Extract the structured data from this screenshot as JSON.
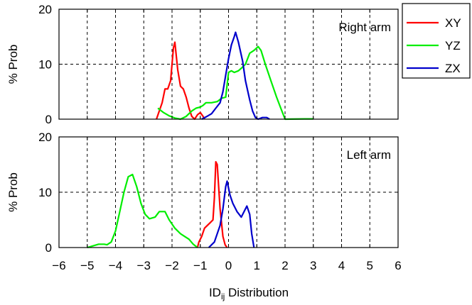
{
  "chart_data": {
    "type": "line",
    "xlabel": {
      "main": "ID",
      "sub": "ij",
      "rest": " Distribution"
    },
    "x_ticks": [
      -6,
      -5,
      -4,
      -3,
      -2,
      -1,
      0,
      1,
      2,
      3,
      4,
      5,
      6
    ],
    "x_tick_labels": [
      "−6",
      "−5",
      "−4",
      "−3",
      "−2",
      "−1",
      "0",
      "1",
      "2",
      "3",
      "4",
      "5",
      "6"
    ],
    "xlim": [
      -6,
      6
    ],
    "grid": true,
    "legend": {
      "placement": "outside-top-right",
      "entries": [
        {
          "name": "XY",
          "color": "#ff0000"
        },
        {
          "name": "YZ",
          "color": "#00ee00"
        },
        {
          "name": "ZX",
          "color": "#0000cc"
        }
      ]
    },
    "panels": [
      {
        "label": "Right arm",
        "ylabel": "% Prob",
        "ylim": [
          0,
          20
        ],
        "y_ticks": [
          0,
          10,
          20
        ],
        "series": [
          {
            "name": "XY",
            "color": "#ff0000",
            "points": [
              [
                -2.55,
                0
              ],
              [
                -2.45,
                1.5
              ],
              [
                -2.35,
                3
              ],
              [
                -2.25,
                5.5
              ],
              [
                -2.15,
                5.5
              ],
              [
                -2.05,
                7
              ],
              [
                -1.95,
                13
              ],
              [
                -1.9,
                14
              ],
              [
                -1.8,
                9
              ],
              [
                -1.7,
                6
              ],
              [
                -1.6,
                5.5
              ],
              [
                -1.5,
                4
              ],
              [
                -1.4,
                2
              ],
              [
                -1.3,
                0.5
              ],
              [
                -1.2,
                0
              ],
              [
                -1.1,
                0.8
              ],
              [
                -1.0,
                1.2
              ],
              [
                -0.9,
                0.5
              ],
              [
                -0.85,
                0
              ]
            ]
          },
          {
            "name": "YZ",
            "color": "#00ee00",
            "points": [
              [
                -2.5,
                2
              ],
              [
                -2.3,
                1.2
              ],
              [
                -2.1,
                0.6
              ],
              [
                -1.9,
                0.2
              ],
              [
                -1.7,
                0
              ],
              [
                -1.5,
                0.5
              ],
              [
                -1.3,
                1.5
              ],
              [
                -1.15,
                2
              ],
              [
                -1.0,
                2.2
              ],
              [
                -0.9,
                2.5
              ],
              [
                -0.8,
                3
              ],
              [
                -0.6,
                3
              ],
              [
                -0.4,
                3.2
              ],
              [
                -0.25,
                3.8
              ],
              [
                -0.1,
                4
              ],
              [
                0.0,
                8.5
              ],
              [
                0.1,
                8.8
              ],
              [
                0.2,
                8.5
              ],
              [
                0.35,
                8.8
              ],
              [
                0.5,
                9.5
              ],
              [
                0.6,
                10
              ],
              [
                0.75,
                12
              ],
              [
                0.9,
                12.5
              ],
              [
                1.05,
                13.2
              ],
              [
                1.15,
                12.5
              ],
              [
                1.3,
                10
              ],
              [
                1.5,
                7
              ],
              [
                1.7,
                4
              ],
              [
                1.85,
                2
              ],
              [
                2.0,
                0
              ],
              [
                2.7,
                0.05
              ],
              [
                3.0,
                0.05
              ]
            ]
          },
          {
            "name": "ZX",
            "color": "#0000cc",
            "points": [
              [
                -0.95,
                0
              ],
              [
                -0.8,
                0.4
              ],
              [
                -0.6,
                1
              ],
              [
                -0.45,
                2
              ],
              [
                -0.3,
                3
              ],
              [
                -0.2,
                5
              ],
              [
                -0.1,
                8
              ],
              [
                0.0,
                11
              ],
              [
                0.1,
                13.5
              ],
              [
                0.2,
                15
              ],
              [
                0.25,
                15.8
              ],
              [
                0.35,
                14
              ],
              [
                0.5,
                10.5
              ],
              [
                0.6,
                7
              ],
              [
                0.75,
                3.5
              ],
              [
                0.85,
                1.5
              ],
              [
                0.95,
                0.3
              ],
              [
                1.05,
                0
              ],
              [
                1.2,
                0.3
              ],
              [
                1.35,
                0.3
              ],
              [
                1.45,
                0
              ]
            ]
          }
        ]
      },
      {
        "label": "Left arm",
        "ylabel": "% Prob",
        "ylim": [
          0,
          20
        ],
        "y_ticks": [
          0,
          10,
          20
        ],
        "series": [
          {
            "name": "XY",
            "color": "#ff0000",
            "points": [
              [
                -1.1,
                0
              ],
              [
                -1.05,
                1
              ],
              [
                -0.95,
                2
              ],
              [
                -0.85,
                3.5
              ],
              [
                -0.75,
                4
              ],
              [
                -0.65,
                4.5
              ],
              [
                -0.55,
                5
              ],
              [
                -0.5,
                9
              ],
              [
                -0.45,
                15.5
              ],
              [
                -0.4,
                15
              ],
              [
                -0.35,
                11
              ],
              [
                -0.3,
                7
              ],
              [
                -0.2,
                2
              ],
              [
                -0.12,
                0.5
              ],
              [
                -0.05,
                0
              ]
            ]
          },
          {
            "name": "YZ",
            "color": "#00ee00",
            "points": [
              [
                -5.0,
                0
              ],
              [
                -4.8,
                0.3
              ],
              [
                -4.6,
                0.6
              ],
              [
                -4.4,
                0.6
              ],
              [
                -4.3,
                0.5
              ],
              [
                -4.15,
                1
              ],
              [
                -4.0,
                3
              ],
              [
                -3.85,
                6.5
              ],
              [
                -3.7,
                10
              ],
              [
                -3.55,
                12.8
              ],
              [
                -3.4,
                13.2
              ],
              [
                -3.25,
                11
              ],
              [
                -3.1,
                8
              ],
              [
                -2.95,
                6
              ],
              [
                -2.8,
                5.2
              ],
              [
                -2.6,
                5.5
              ],
              [
                -2.45,
                6.5
              ],
              [
                -2.25,
                6.5
              ],
              [
                -2.1,
                5
              ],
              [
                -1.9,
                3.5
              ],
              [
                -1.7,
                2.5
              ],
              [
                -1.55,
                2
              ],
              [
                -1.4,
                1.5
              ],
              [
                -1.25,
                0.6
              ],
              [
                -1.1,
                0
              ]
            ]
          },
          {
            "name": "ZX",
            "color": "#0000cc",
            "points": [
              [
                -0.7,
                0
              ],
              [
                -0.5,
                1
              ],
              [
                -0.3,
                4
              ],
              [
                -0.2,
                7
              ],
              [
                -0.1,
                11
              ],
              [
                -0.05,
                12
              ],
              [
                0.05,
                9.5
              ],
              [
                0.15,
                8
              ],
              [
                0.3,
                6.5
              ],
              [
                0.45,
                5.5
              ],
              [
                0.55,
                6.5
              ],
              [
                0.65,
                7.5
              ],
              [
                0.75,
                6
              ],
              [
                0.82,
                2.5
              ],
              [
                0.9,
                0
              ]
            ]
          }
        ]
      }
    ]
  }
}
